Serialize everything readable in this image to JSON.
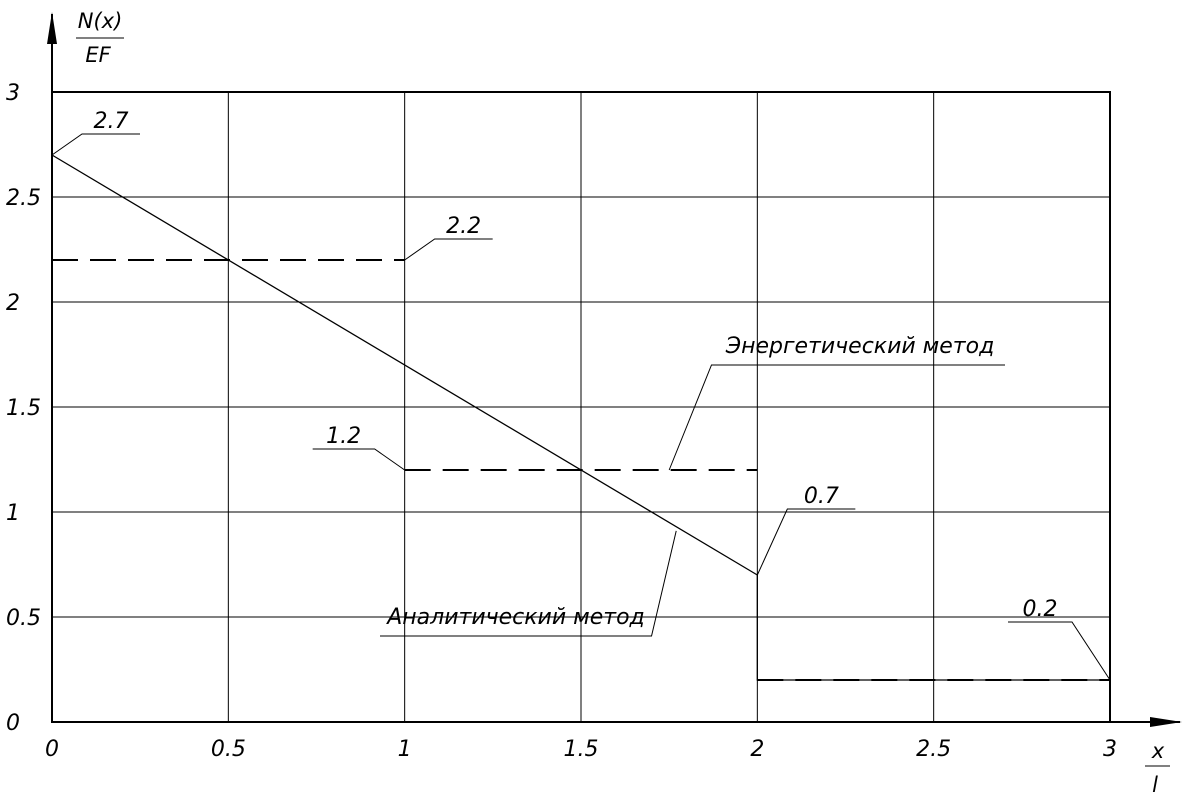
{
  "chart_data": {
    "type": "line",
    "xlim": [
      0,
      3
    ],
    "ylim": [
      0,
      3
    ],
    "grid": true,
    "xticks": [
      "0",
      "0.5",
      "1",
      "1.5",
      "2",
      "2.5",
      "3"
    ],
    "yticks": [
      "0",
      "0.5",
      "1",
      "1.5",
      "2",
      "2.5",
      "3"
    ],
    "y_axis_label": {
      "numerator": "N(x)",
      "denominator": "EF"
    },
    "x_axis_label": {
      "numerator": "x",
      "denominator": "l"
    },
    "series": [
      {
        "name": "Аналитический метод",
        "style": "solid",
        "segments": [
          [
            [
              0,
              2.7
            ],
            [
              2,
              0.7
            ]
          ],
          [
            [
              2,
              0.7
            ],
            [
              2,
              0.2
            ],
            [
              3,
              0.2
            ]
          ]
        ]
      },
      {
        "name": "Энергетический метод",
        "style": "dashed",
        "segments": [
          [
            [
              0,
              2.2
            ],
            [
              1,
              2.2
            ]
          ],
          [
            [
              1,
              1.2
            ],
            [
              2,
              1.2
            ]
          ],
          [
            [
              2,
              0.2
            ],
            [
              3,
              0.2
            ]
          ]
        ]
      }
    ],
    "value_labels": [
      {
        "text": "2.7",
        "at": [
          0,
          2.7
        ]
      },
      {
        "text": "2.2",
        "at": [
          1,
          2.2
        ]
      },
      {
        "text": "1.2",
        "at": [
          1,
          1.2
        ]
      },
      {
        "text": "0.7",
        "at": [
          2,
          0.7
        ]
      },
      {
        "text": "0.2",
        "at": [
          3,
          0.2
        ]
      }
    ]
  }
}
